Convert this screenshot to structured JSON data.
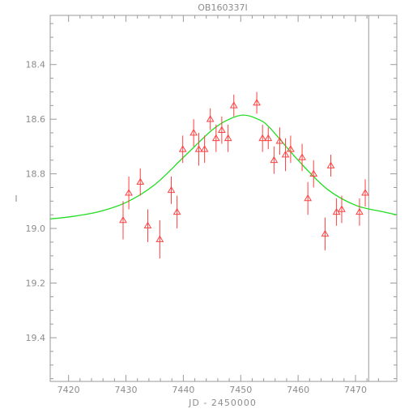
{
  "chart_data": {
    "type": "scatter",
    "title": "OB160337I",
    "xlabel": "JD - 2450000",
    "ylabel": "I",
    "xlim": [
      7416.8,
      7477.2
    ],
    "ylim": [
      19.56,
      18.22
    ],
    "y_inverted": true,
    "grid": false,
    "x_ticks": [
      7420,
      7430,
      7440,
      7450,
      7460,
      7470
    ],
    "y_ticks": [
      18.4,
      18.6,
      18.8,
      19.0,
      19.2,
      19.4
    ],
    "x_tick_labels": [
      "7420",
      "7430",
      "7440",
      "7450",
      "7460",
      "7470"
    ],
    "y_tick_labels": [
      "18.4",
      "18.6",
      "18.8",
      "19.0",
      "19.2",
      "19.4"
    ],
    "vertical_line_x": 7472.3,
    "colors": {
      "points": "#ff4040",
      "model": "#22dd22",
      "axes": "#9a9a9a",
      "vline": "#9a9a9a"
    },
    "points": [
      {
        "x": 7429.5,
        "y": 18.97,
        "err": 0.07
      },
      {
        "x": 7430.5,
        "y": 18.87,
        "err": 0.06
      },
      {
        "x": 7432.5,
        "y": 18.83,
        "err": 0.05
      },
      {
        "x": 7433.8,
        "y": 18.99,
        "err": 0.06
      },
      {
        "x": 7435.9,
        "y": 19.04,
        "err": 0.07
      },
      {
        "x": 7437.9,
        "y": 18.86,
        "err": 0.05
      },
      {
        "x": 7438.9,
        "y": 18.94,
        "err": 0.06
      },
      {
        "x": 7439.9,
        "y": 18.71,
        "err": 0.05
      },
      {
        "x": 7441.8,
        "y": 18.65,
        "err": 0.05
      },
      {
        "x": 7442.7,
        "y": 18.71,
        "err": 0.06
      },
      {
        "x": 7443.7,
        "y": 18.71,
        "err": 0.05
      },
      {
        "x": 7444.7,
        "y": 18.6,
        "err": 0.04
      },
      {
        "x": 7445.7,
        "y": 18.67,
        "err": 0.05
      },
      {
        "x": 7446.7,
        "y": 18.64,
        "err": 0.05
      },
      {
        "x": 7447.8,
        "y": 18.67,
        "err": 0.05
      },
      {
        "x": 7448.8,
        "y": 18.55,
        "err": 0.04
      },
      {
        "x": 7452.8,
        "y": 18.54,
        "err": 0.04
      },
      {
        "x": 7453.8,
        "y": 18.67,
        "err": 0.05
      },
      {
        "x": 7454.8,
        "y": 18.67,
        "err": 0.04
      },
      {
        "x": 7455.8,
        "y": 18.75,
        "err": 0.05
      },
      {
        "x": 7456.8,
        "y": 18.68,
        "err": 0.05
      },
      {
        "x": 7457.8,
        "y": 18.73,
        "err": 0.06
      },
      {
        "x": 7458.7,
        "y": 18.71,
        "err": 0.05
      },
      {
        "x": 7460.7,
        "y": 18.74,
        "err": 0.05
      },
      {
        "x": 7461.7,
        "y": 18.89,
        "err": 0.06
      },
      {
        "x": 7462.7,
        "y": 18.8,
        "err": 0.05
      },
      {
        "x": 7464.7,
        "y": 19.02,
        "err": 0.06
      },
      {
        "x": 7465.7,
        "y": 18.77,
        "err": 0.04
      },
      {
        "x": 7466.7,
        "y": 18.94,
        "err": 0.05
      },
      {
        "x": 7467.6,
        "y": 18.93,
        "err": 0.05
      },
      {
        "x": 7470.7,
        "y": 18.94,
        "err": 0.05
      },
      {
        "x": 7471.7,
        "y": 18.87,
        "err": 0.05
      }
    ],
    "model": {
      "x": [
        7416.8,
        7420,
        7425,
        7430,
        7435,
        7440,
        7445,
        7448,
        7450.5,
        7453,
        7455,
        7460,
        7465,
        7470,
        7475,
        7477.2
      ],
      "y": [
        18.965,
        18.958,
        18.94,
        18.905,
        18.84,
        18.74,
        18.64,
        18.6,
        18.585,
        18.6,
        18.63,
        18.75,
        18.855,
        18.915,
        18.94,
        18.95
      ]
    }
  }
}
